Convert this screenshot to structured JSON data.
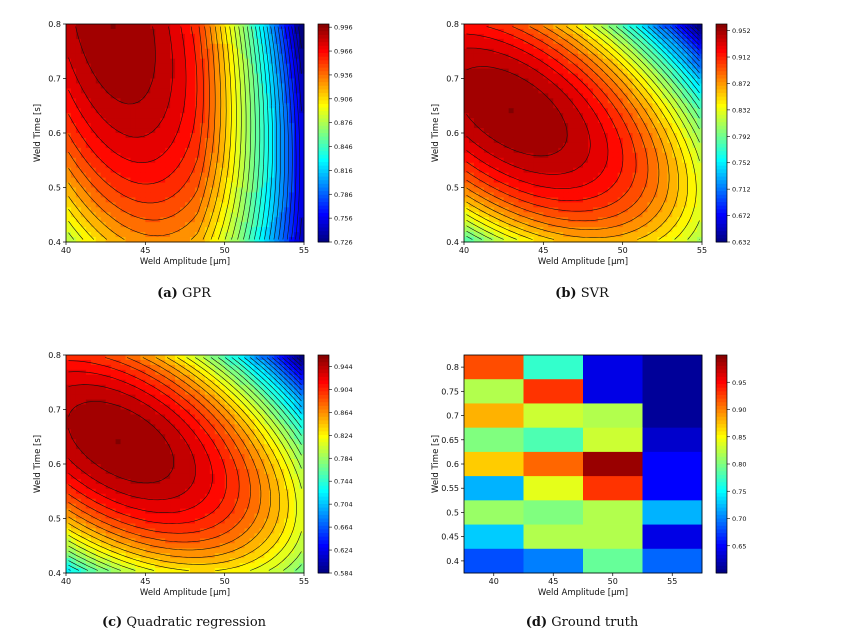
{
  "chart_data": [
    {
      "id": "a",
      "type": "contour",
      "caption_label": "(a)",
      "caption_text": "GPR",
      "xlabel": "Weld Amplitude [μm]",
      "ylabel": "Weld Time [s]",
      "xlim": [
        40,
        55
      ],
      "ylim": [
        0.4,
        0.8
      ],
      "xticks": [
        "40",
        "45",
        "50",
        "55"
      ],
      "yticks": [
        "0.4",
        "0.5",
        "0.6",
        "0.7",
        "0.8"
      ],
      "colorbar_range": [
        0.726,
        1.0
      ],
      "colorbar_ticks": [
        "0.726",
        "0.756",
        "0.786",
        "0.816",
        "0.846",
        "0.876",
        "0.906",
        "0.936",
        "0.966",
        "0.996"
      ],
      "peak": {
        "x": 43,
        "y": 0.8
      }
    },
    {
      "id": "b",
      "type": "contour",
      "caption_label": "(b)",
      "caption_text": "SVR",
      "xlabel": "Weld Amplitude [μm]",
      "ylabel": "Weld Time [s]",
      "xlim": [
        40,
        55
      ],
      "ylim": [
        0.4,
        0.8
      ],
      "xticks": [
        "40",
        "45",
        "50",
        "55"
      ],
      "yticks": [
        "0.4",
        "0.5",
        "0.6",
        "0.7",
        "0.8"
      ],
      "colorbar_range": [
        0.632,
        0.962
      ],
      "colorbar_ticks": [
        "0.632",
        "0.672",
        "0.712",
        "0.752",
        "0.792",
        "0.832",
        "0.872",
        "0.912",
        "0.952"
      ],
      "peak": {
        "x": 43,
        "y": 0.64
      }
    },
    {
      "id": "c",
      "type": "contour",
      "caption_label": "(c)",
      "caption_text": "Quadratic regression",
      "xlabel": "Weld Amplitude [μm]",
      "ylabel": "Weld Time [s]",
      "xlim": [
        40,
        55
      ],
      "ylim": [
        0.4,
        0.8
      ],
      "xticks": [
        "40",
        "45",
        "50",
        "55"
      ],
      "yticks": [
        "0.4",
        "0.5",
        "0.6",
        "0.7",
        "0.8"
      ],
      "colorbar_range": [
        0.584,
        0.964
      ],
      "colorbar_ticks": [
        "0.584",
        "0.624",
        "0.664",
        "0.704",
        "0.744",
        "0.784",
        "0.824",
        "0.864",
        "0.904",
        "0.944"
      ],
      "peak": {
        "x": 43.5,
        "y": 0.64
      }
    },
    {
      "id": "d",
      "type": "heatmap",
      "caption_label": "(d)",
      "caption_text": "Ground truth",
      "xlabel": "Weld Amplitude [μm]",
      "ylabel": "Weld Time [s]",
      "x": [
        40,
        45,
        50,
        55
      ],
      "y": [
        0.8,
        0.75,
        0.7,
        0.65,
        0.6,
        0.55,
        0.5,
        0.45,
        0.4
      ],
      "xticks": [
        "40",
        "45",
        "50",
        "55"
      ],
      "yticks": [
        "0.8",
        "0.75",
        "0.7",
        "0.65",
        "0.6",
        "0.55",
        "0.5",
        "0.45",
        "0.4"
      ],
      "colorbar_range": [
        0.6,
        1.0
      ],
      "colorbar_ticks": [
        "0.95",
        "0.90",
        "0.85",
        "0.80",
        "0.75",
        "0.70",
        "0.65"
      ],
      "values": [
        [
          0.92,
          0.77,
          0.64,
          0.61
        ],
        [
          0.82,
          0.93,
          0.64,
          0.61
        ],
        [
          0.88,
          0.83,
          0.82,
          0.61
        ],
        [
          0.8,
          0.78,
          0.83,
          0.63
        ],
        [
          0.87,
          0.91,
          0.99,
          0.65
        ],
        [
          0.72,
          0.84,
          0.93,
          0.65
        ],
        [
          0.81,
          0.8,
          0.82,
          0.72
        ],
        [
          0.73,
          0.82,
          0.82,
          0.64
        ],
        [
          0.68,
          0.7,
          0.79,
          0.69
        ]
      ]
    }
  ]
}
